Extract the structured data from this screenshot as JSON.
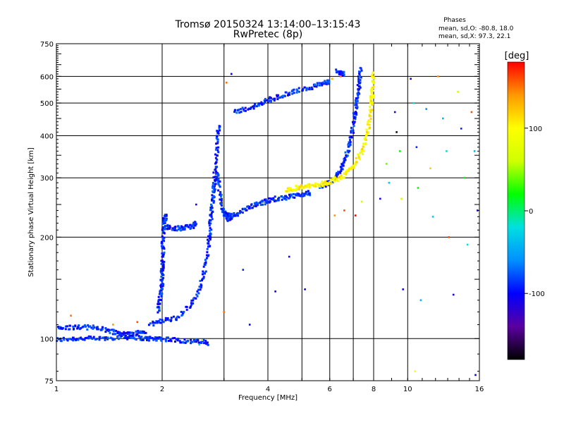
{
  "chart_data": {
    "type": "scatter",
    "title": "Tromsø 20150324 13:14:00–13:15:43",
    "subtitle": "RwPretec (8p)",
    "stats": {
      "heading": "Phases",
      "line_o": "mean, sd,O: -80.8, 18.0",
      "line_x": "mean, sd,X:  97.3, 22.1"
    },
    "xlabel": "Frequency [MHz]",
    "ylabel": "Stationary phase Virtual Height [km]",
    "xscale": "log",
    "yscale": "log",
    "xlim": [
      1,
      16
    ],
    "ylim": [
      75,
      750
    ],
    "xticks": [
      1,
      2,
      4,
      6,
      8,
      10,
      16
    ],
    "xtick_labels": [
      "1",
      "2",
      "4",
      "6",
      "8",
      "10",
      "16"
    ],
    "yticks": [
      75,
      100,
      200,
      300,
      400,
      500,
      600,
      750
    ],
    "ytick_labels": [
      "75",
      "100",
      "200",
      "300",
      "400",
      "500",
      "600",
      "750"
    ],
    "xgrid": [
      1,
      2,
      3,
      4,
      5,
      6,
      7,
      8,
      10
    ],
    "ygrid": [
      100,
      200,
      300,
      400,
      500,
      600
    ],
    "grid": true,
    "colorbar": {
      "label": "[deg]",
      "range": [
        -180,
        180
      ],
      "ticks": [
        100,
        0,
        -100
      ],
      "tick_labels": [
        "100",
        "0",
        "-100"
      ],
      "colors": [
        "#000000",
        "#5a00a0",
        "#0000ff",
        "#0090ff",
        "#00e0e0",
        "#00ff00",
        "#d0ff00",
        "#ffff00",
        "#ff9900",
        "#ff0000"
      ]
    },
    "series": [
      {
        "mode": "O",
        "phase_deg": -90,
        "traces": [
          {
            "x": [
              1.0,
              1.1,
              1.2,
              1.35,
              1.5,
              1.65,
              1.8,
              1.9,
              2.0,
              2.2,
              2.4,
              2.6,
              2.7
            ],
            "y": [
              99,
              100,
              100,
              100,
              101,
              101,
              100,
              100,
              100,
              99,
              98,
              98,
              97
            ]
          },
          {
            "x": [
              1.0,
              1.1,
              1.2,
              1.3,
              1.4,
              1.5,
              1.6,
              1.7,
              1.8
            ],
            "y": [
              107,
              108,
              108,
              108,
              106,
              104,
              103,
              104,
              105
            ]
          },
          {
            "x": [
              1.95,
              1.97,
              1.99,
              2.0,
              2.0,
              2.01,
              2.01,
              2.02,
              2.03,
              2.05
            ],
            "y": [
              120,
              130,
              140,
              150,
              160,
              170,
              190,
              210,
              225,
              232
            ]
          },
          {
            "x": [
              2.05,
              2.15,
              2.25,
              2.35,
              2.45,
              2.5
            ],
            "y": [
              215,
              213,
              212,
              214,
              216,
              220
            ]
          },
          {
            "x": [
              1.85,
              2.0,
              2.2,
              2.4,
              2.55,
              2.65,
              2.7,
              2.73,
              2.76,
              2.8,
              2.82,
              2.85,
              2.88,
              2.9
            ],
            "y": [
              110,
              113,
              115,
              125,
              140,
              160,
              185,
              205,
              230,
              270,
              300,
              340,
              390,
              430
            ]
          },
          {
            "x": [
              3.05,
              3.1,
              3.2,
              3.4,
              3.6,
              3.8,
              4.0,
              4.2,
              4.5,
              4.8,
              5.0,
              5.3
            ],
            "y": [
              226,
              228,
              232,
              240,
              247,
              252,
              256,
              260,
              262,
              265,
              268,
              271
            ]
          },
          {
            "x": [
              5.6,
              5.9,
              6.2,
              6.4,
              6.6,
              6.8,
              6.95,
              7.05,
              7.15,
              7.25,
              7.3,
              7.35
            ],
            "y": [
              280,
              288,
              298,
              312,
              335,
              370,
              410,
              455,
              500,
              550,
              590,
              630
            ]
          },
          {
            "x": [
              3.2,
              3.5,
              3.8,
              4.0,
              4.3,
              4.6,
              5.0,
              5.4,
              5.8,
              6.0
            ],
            "y": [
              470,
              482,
              495,
              510,
              522,
              535,
              548,
              560,
              572,
              580
            ]
          },
          {
            "x": [
              6.3,
              6.45,
              6.6
            ],
            "y": [
              620,
              615,
              610
            ]
          },
          {
            "x": [
              2.75,
              2.8,
              2.85,
              2.9,
              2.95,
              3.0,
              3.05,
              3.1
            ],
            "y": [
              230,
              270,
              310,
              290,
              250,
              235,
              230,
              232
            ]
          }
        ]
      },
      {
        "mode": "X",
        "phase_deg": 100,
        "traces": [
          {
            "x": [
              4.5,
              4.8,
              5.0,
              5.3,
              5.6,
              5.9,
              6.2,
              6.5,
              6.8,
              7.1,
              7.4,
              7.65,
              7.8,
              7.9,
              7.95,
              8.0
            ],
            "y": [
              276,
              280,
              282,
              284,
              286,
              290,
              296,
              303,
              315,
              332,
              360,
              400,
              450,
              500,
              560,
              620
            ]
          }
        ]
      },
      {
        "mode": "scattered",
        "points": [
          {
            "x": 3.05,
            "y": 575,
            "phase": 150
          },
          {
            "x": 3.15,
            "y": 610,
            "phase": -100
          },
          {
            "x": 2.5,
            "y": 250,
            "phase": -110
          },
          {
            "x": 3.4,
            "y": 160,
            "phase": -90
          },
          {
            "x": 3.55,
            "y": 110,
            "phase": -100
          },
          {
            "x": 4.6,
            "y": 175,
            "phase": -110
          },
          {
            "x": 5.1,
            "y": 140,
            "phase": -100
          },
          {
            "x": 6.2,
            "y": 232,
            "phase": 140
          },
          {
            "x": 6.6,
            "y": 240,
            "phase": 160
          },
          {
            "x": 7.1,
            "y": 232,
            "phase": 180
          },
          {
            "x": 7.4,
            "y": 255,
            "phase": 60
          },
          {
            "x": 8.35,
            "y": 260,
            "phase": -110
          },
          {
            "x": 8.7,
            "y": 330,
            "phase": 40
          },
          {
            "x": 8.85,
            "y": 290,
            "phase": -30
          },
          {
            "x": 9.2,
            "y": 470,
            "phase": -110
          },
          {
            "x": 9.3,
            "y": 410,
            "phase": -170
          },
          {
            "x": 9.5,
            "y": 360,
            "phase": 20
          },
          {
            "x": 9.6,
            "y": 260,
            "phase": 60
          },
          {
            "x": 9.7,
            "y": 140,
            "phase": -110
          },
          {
            "x": 10.2,
            "y": 590,
            "phase": -110
          },
          {
            "x": 10.4,
            "y": 500,
            "phase": -20
          },
          {
            "x": 10.6,
            "y": 370,
            "phase": -90
          },
          {
            "x": 10.7,
            "y": 280,
            "phase": 20
          },
          {
            "x": 10.9,
            "y": 130,
            "phase": -40
          },
          {
            "x": 11.3,
            "y": 480,
            "phase": -60
          },
          {
            "x": 11.6,
            "y": 320,
            "phase": 120
          },
          {
            "x": 11.8,
            "y": 230,
            "phase": -30
          },
          {
            "x": 12.2,
            "y": 600,
            "phase": 140
          },
          {
            "x": 12.6,
            "y": 450,
            "phase": -40
          },
          {
            "x": 12.9,
            "y": 360,
            "phase": -20
          },
          {
            "x": 13.1,
            "y": 200,
            "phase": 160
          },
          {
            "x": 13.5,
            "y": 135,
            "phase": -110
          },
          {
            "x": 13.9,
            "y": 540,
            "phase": 60
          },
          {
            "x": 14.2,
            "y": 420,
            "phase": -90
          },
          {
            "x": 14.5,
            "y": 300,
            "phase": 20
          },
          {
            "x": 14.8,
            "y": 190,
            "phase": -20
          },
          {
            "x": 15.2,
            "y": 470,
            "phase": 160
          },
          {
            "x": 15.5,
            "y": 360,
            "phase": -40
          },
          {
            "x": 15.8,
            "y": 240,
            "phase": -110
          },
          {
            "x": 15.6,
            "y": 78,
            "phase": -100
          },
          {
            "x": 10.5,
            "y": 80,
            "phase": 100
          },
          {
            "x": 1.1,
            "y": 117,
            "phase": 150
          },
          {
            "x": 1.45,
            "y": 110,
            "phase": 140
          },
          {
            "x": 1.7,
            "y": 112,
            "phase": 160
          },
          {
            "x": 2.55,
            "y": 96,
            "phase": -30
          },
          {
            "x": 2.6,
            "y": 99,
            "phase": 60
          },
          {
            "x": 4.2,
            "y": 138,
            "phase": -100
          },
          {
            "x": 6.45,
            "y": 600,
            "phase": 150
          },
          {
            "x": 6.1,
            "y": 590,
            "phase": 130
          },
          {
            "x": 3.0,
            "y": 120,
            "phase": 150
          }
        ]
      }
    ]
  }
}
